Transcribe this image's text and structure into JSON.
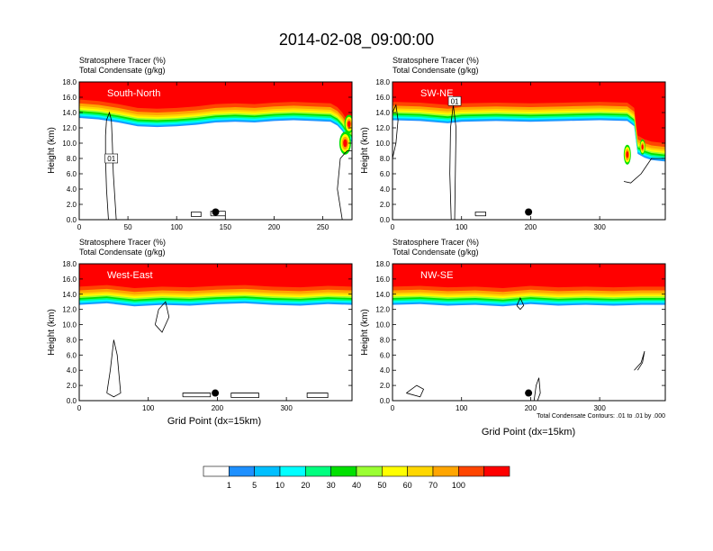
{
  "title": "2014-02-08_09:00:00",
  "chart_data": [
    {
      "type": "heatmap",
      "label": "South-North",
      "subtitle_1": "Stratosphere Tracer   (%)",
      "subtitle_2": "Total Condensate   (g/kg)",
      "ylabel": "Height (km)",
      "xlabel": "",
      "xlim": [
        0,
        280
      ],
      "ylim": [
        0,
        18
      ],
      "xticks": [
        0,
        50,
        100,
        150,
        200,
        250
      ],
      "yticks": [
        "0.0",
        "2.0",
        "4.0",
        "6.0",
        "8.0",
        "10.0",
        "12.0",
        "14.0",
        "16.0",
        "18.0"
      ],
      "contour_labels": [
        {
          "text": "01",
          "x": 33,
          "y": 8
        }
      ],
      "tropopause_base_km": [
        [
          0,
          15.7
        ],
        [
          20,
          15.5
        ],
        [
          40,
          15.1
        ],
        [
          60,
          14.6
        ],
        [
          80,
          14.5
        ],
        [
          100,
          14.6
        ],
        [
          120,
          14.8
        ],
        [
          140,
          15.1
        ],
        [
          160,
          15.2
        ],
        [
          180,
          15.1
        ],
        [
          200,
          15.3
        ],
        [
          220,
          15.4
        ],
        [
          240,
          15.3
        ],
        [
          258,
          15.2
        ],
        [
          265,
          14.7
        ],
        [
          270,
          14.0
        ],
        [
          275,
          13.0
        ],
        [
          280,
          12.5
        ]
      ],
      "hotspots": [
        {
          "x": 273,
          "y": 10,
          "r": 1.5
        },
        {
          "x": 277,
          "y": 12.5,
          "r": 1.2
        }
      ],
      "marker": {
        "x": 140,
        "y": 1
      }
    },
    {
      "type": "heatmap",
      "label": "SW-NE",
      "subtitle_1": "Stratosphere Tracer   (%)",
      "subtitle_2": "Total Condensate   (g/kg)",
      "ylabel": "Height (km)",
      "xlabel": "",
      "xlim": [
        0,
        395
      ],
      "ylim": [
        0,
        18
      ],
      "xticks": [
        0,
        100,
        200,
        300
      ],
      "yticks": [
        "0.0",
        "2.0",
        "4.0",
        "6.0",
        "8.0",
        "10.0",
        "12.0",
        "14.0",
        "16.0",
        "18.0"
      ],
      "contour_labels": [
        {
          "text": "01",
          "x": 90,
          "y": 15.5
        }
      ],
      "tropopause_base_km": [
        [
          0,
          15.4
        ],
        [
          40,
          15.3
        ],
        [
          80,
          15.0
        ],
        [
          100,
          15.2
        ],
        [
          150,
          15.3
        ],
        [
          200,
          15.2
        ],
        [
          250,
          15.3
        ],
        [
          300,
          15.4
        ],
        [
          340,
          15.3
        ],
        [
          350,
          14.6
        ],
        [
          355,
          11.0
        ],
        [
          365,
          10.5
        ],
        [
          375,
          10.2
        ],
        [
          395,
          10.0
        ]
      ],
      "hotspots": [
        {
          "x": 340,
          "y": 8.5,
          "r": 1.3
        },
        {
          "x": 362,
          "y": 9.5,
          "r": 1.0
        }
      ],
      "marker": {
        "x": 197,
        "y": 1
      }
    },
    {
      "type": "heatmap",
      "label": "West-East",
      "subtitle_1": "Stratosphere Tracer   (%)",
      "subtitle_2": "Total Condensate   (g/kg)",
      "ylabel": "Height (km)",
      "xlabel": "Grid Point (dx=15km)",
      "xlim": [
        0,
        395
      ],
      "ylim": [
        0,
        18
      ],
      "xticks": [
        0,
        100,
        200,
        300
      ],
      "yticks": [
        "0.0",
        "2.0",
        "4.0",
        "6.0",
        "8.0",
        "10.0",
        "12.0",
        "14.0",
        "16.0",
        "18.0"
      ],
      "contour_labels": [],
      "tropopause_base_km": [
        [
          0,
          15.0
        ],
        [
          40,
          15.2
        ],
        [
          80,
          14.8
        ],
        [
          120,
          15.0
        ],
        [
          160,
          14.9
        ],
        [
          200,
          15.1
        ],
        [
          240,
          15.2
        ],
        [
          280,
          15.0
        ],
        [
          320,
          14.9
        ],
        [
          360,
          15.1
        ],
        [
          395,
          15.0
        ]
      ],
      "hotspots": [],
      "marker": {
        "x": 197,
        "y": 1
      }
    },
    {
      "type": "heatmap",
      "label": "NW-SE",
      "subtitle_1": "Stratosphere Tracer   (%)",
      "subtitle_2": "Total Condensate   (g/kg)",
      "ylabel": "Height (km)",
      "xlabel": "Grid Point (dx=15km)",
      "xlim": [
        0,
        395
      ],
      "ylim": [
        0,
        18
      ],
      "xticks": [
        0,
        100,
        200,
        300
      ],
      "yticks": [
        "0.0",
        "2.0",
        "4.0",
        "6.0",
        "8.0",
        "10.0",
        "12.0",
        "14.0",
        "16.0",
        "18.0"
      ],
      "contour_labels": [],
      "tropopause_base_km": [
        [
          0,
          15.0
        ],
        [
          40,
          15.1
        ],
        [
          80,
          14.9
        ],
        [
          120,
          15.0
        ],
        [
          160,
          14.8
        ],
        [
          200,
          15.1
        ],
        [
          240,
          14.9
        ],
        [
          280,
          15.0
        ],
        [
          320,
          14.9
        ],
        [
          360,
          15.0
        ],
        [
          395,
          15.0
        ]
      ],
      "hotspots": [],
      "marker": {
        "x": 197,
        "y": 1
      }
    }
  ],
  "footnote": "Total Condensate Contours: .01 to .01 by .000",
  "colorbar": {
    "levels": [
      "1",
      "5",
      "10",
      "20",
      "30",
      "40",
      "50",
      "60",
      "70",
      "100"
    ],
    "colors": [
      "#ffffff",
      "#1e90ff",
      "#00bfff",
      "#00ffff",
      "#00ff7f",
      "#00e000",
      "#9aff32",
      "#ffff00",
      "#ffd700",
      "#ffa500",
      "#ff4500",
      "#ff0000"
    ]
  }
}
